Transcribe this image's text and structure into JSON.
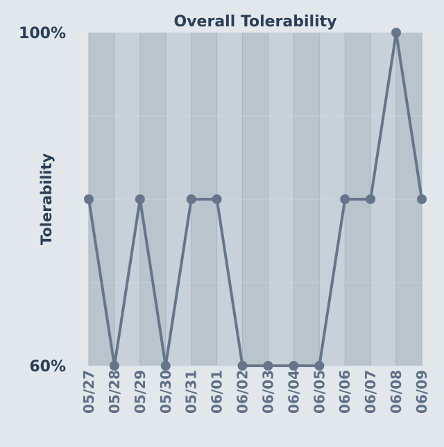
{
  "chart_data": {
    "type": "line",
    "title": "Overall Tolerability",
    "xlabel": "",
    "ylabel": "Tolerability",
    "categories": [
      "05/27",
      "05/28",
      "05/29",
      "05/30",
      "05/31",
      "06/01",
      "06/02",
      "06/03",
      "06/04",
      "06/05",
      "06/06",
      "06/07",
      "06/08",
      "06/09"
    ],
    "series": [
      {
        "values": [
          80,
          60,
          80,
          60,
          80,
          80,
          60,
          60,
          60,
          60,
          80,
          80,
          100,
          80
        ]
      }
    ],
    "ylim": [
      60,
      100
    ],
    "y_tick_labels": [
      "60%",
      "100%"
    ],
    "grid": true,
    "legend": "none",
    "colors": {
      "line": "#66758a",
      "marker": "#66758a",
      "band_dark": "#b9c4cd",
      "band_light": "#c8d1d9",
      "text": "#2b3e56",
      "tick_text": "#5f6f85",
      "background": "#e2e7ec"
    }
  }
}
